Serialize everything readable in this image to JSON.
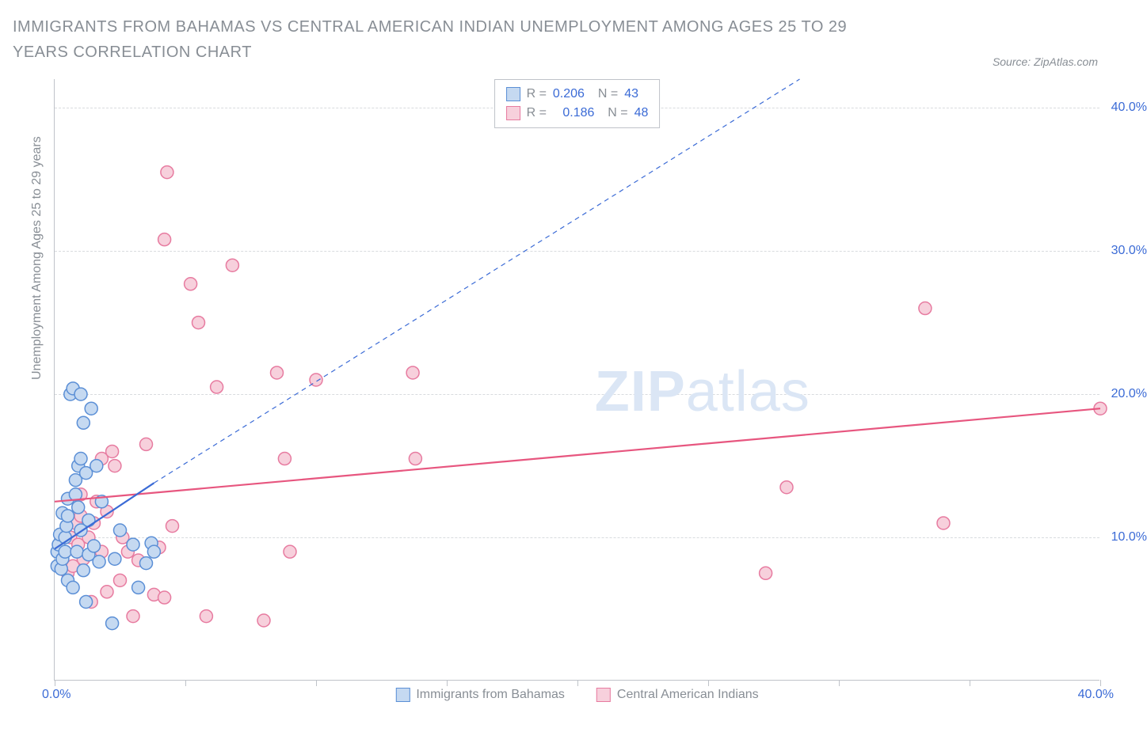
{
  "title": "IMMIGRANTS FROM BAHAMAS VS CENTRAL AMERICAN INDIAN UNEMPLOYMENT AMONG AGES 25 TO 29 YEARS CORRELATION CHART",
  "source": "Source: ZipAtlas.com",
  "y_axis_title": "Unemployment Among Ages 25 to 29 years",
  "watermark_bold": "ZIP",
  "watermark_rest": "atlas",
  "chart": {
    "type": "scatter",
    "xlim": [
      0.0,
      40.0
    ],
    "ylim": [
      0.0,
      42.0
    ],
    "x_ticks": [
      0.0,
      5.0,
      10.0,
      15.0,
      20.0,
      25.0,
      30.0,
      35.0,
      40.0
    ],
    "x_tick_labels_visible": {
      "first": "0.0%",
      "last": "40.0%"
    },
    "y_grid": [
      10.0,
      20.0,
      30.0,
      40.0
    ],
    "y_tick_labels": [
      "10.0%",
      "20.0%",
      "30.0%",
      "40.0%"
    ],
    "grid_color": "#d8dbde",
    "axis_color": "#bfc3c9",
    "background_color": "#ffffff",
    "tick_label_color": "#3b6bd6",
    "axis_title_color": "#888e95",
    "marker_radius": 8,
    "series": [
      {
        "name": "Immigrants from Bahamas",
        "color_fill": "#c5d9f1",
        "color_stroke": "#5b8fd6",
        "trend": {
          "x1": 0.0,
          "y1": 9.2,
          "x2": 3.8,
          "y2": 13.8,
          "dash_x2": 28.5,
          "dash_y2": 42.0,
          "color": "#3b6bd6",
          "width": 2.2
        },
        "legend_stats": {
          "R": "0.206",
          "N": "43"
        },
        "points": [
          [
            0.1,
            8.0
          ],
          [
            0.1,
            9.0
          ],
          [
            0.15,
            9.5
          ],
          [
            0.2,
            10.2
          ],
          [
            0.25,
            7.8
          ],
          [
            0.3,
            8.5
          ],
          [
            0.3,
            11.7
          ],
          [
            0.4,
            9.0
          ],
          [
            0.4,
            10.0
          ],
          [
            0.45,
            10.8
          ],
          [
            0.5,
            7.0
          ],
          [
            0.5,
            11.5
          ],
          [
            0.5,
            12.7
          ],
          [
            0.6,
            20.0
          ],
          [
            0.7,
            6.5
          ],
          [
            0.7,
            20.4
          ],
          [
            0.8,
            13.0
          ],
          [
            0.8,
            14.0
          ],
          [
            0.85,
            9.0
          ],
          [
            0.9,
            12.1
          ],
          [
            0.9,
            15.0
          ],
          [
            1.0,
            10.5
          ],
          [
            1.0,
            15.5
          ],
          [
            1.0,
            20.0
          ],
          [
            1.1,
            7.7
          ],
          [
            1.1,
            18.0
          ],
          [
            1.2,
            5.5
          ],
          [
            1.2,
            14.5
          ],
          [
            1.3,
            8.8
          ],
          [
            1.3,
            11.2
          ],
          [
            1.4,
            19.0
          ],
          [
            1.5,
            9.4
          ],
          [
            1.6,
            15.0
          ],
          [
            1.7,
            8.3
          ],
          [
            1.8,
            12.5
          ],
          [
            2.2,
            4.0
          ],
          [
            2.3,
            8.5
          ],
          [
            2.5,
            10.5
          ],
          [
            3.0,
            9.5
          ],
          [
            3.2,
            6.5
          ],
          [
            3.5,
            8.2
          ],
          [
            3.7,
            9.6
          ],
          [
            3.8,
            9.0
          ]
        ]
      },
      {
        "name": "Central American Indians",
        "color_fill": "#f7d0dc",
        "color_stroke": "#e77ba0",
        "trend": {
          "x1": 0.0,
          "y1": 12.5,
          "x2": 40.0,
          "y2": 19.0,
          "color": "#e7567f",
          "width": 2.2
        },
        "legend_stats": {
          "R": "0.186",
          "N": "48"
        },
        "points": [
          [
            0.4,
            9.0
          ],
          [
            0.5,
            7.5
          ],
          [
            0.6,
            10.0
          ],
          [
            0.7,
            8.0
          ],
          [
            0.8,
            11.0
          ],
          [
            0.9,
            9.5
          ],
          [
            1.0,
            11.5
          ],
          [
            1.0,
            13.0
          ],
          [
            1.1,
            8.5
          ],
          [
            1.3,
            10.0
          ],
          [
            1.4,
            5.5
          ],
          [
            1.5,
            11.0
          ],
          [
            1.6,
            12.5
          ],
          [
            1.8,
            9.0
          ],
          [
            1.8,
            15.5
          ],
          [
            2.0,
            6.2
          ],
          [
            2.0,
            11.8
          ],
          [
            2.2,
            16.0
          ],
          [
            2.3,
            15.0
          ],
          [
            2.5,
            7.0
          ],
          [
            2.6,
            10.0
          ],
          [
            2.8,
            9.0
          ],
          [
            3.0,
            4.5
          ],
          [
            3.2,
            8.4
          ],
          [
            3.5,
            16.5
          ],
          [
            3.8,
            6.0
          ],
          [
            4.0,
            9.3
          ],
          [
            4.2,
            5.8
          ],
          [
            4.2,
            30.8
          ],
          [
            4.3,
            35.5
          ],
          [
            4.5,
            10.8
          ],
          [
            5.2,
            27.7
          ],
          [
            5.5,
            25.0
          ],
          [
            5.8,
            4.5
          ],
          [
            6.2,
            20.5
          ],
          [
            6.8,
            29.0
          ],
          [
            8.0,
            4.2
          ],
          [
            8.5,
            21.5
          ],
          [
            8.8,
            15.5
          ],
          [
            9.0,
            9.0
          ],
          [
            10.0,
            21.0
          ],
          [
            13.7,
            21.5
          ],
          [
            13.8,
            15.5
          ],
          [
            27.2,
            7.5
          ],
          [
            28.0,
            13.5
          ],
          [
            33.3,
            26.0
          ],
          [
            34.0,
            11.0
          ],
          [
            40.0,
            19.0
          ]
        ]
      }
    ]
  },
  "legend_bottom": [
    {
      "label": "Immigrants from Bahamas",
      "fill": "#c5d9f1",
      "stroke": "#5b8fd6"
    },
    {
      "label": "Central American Indians",
      "fill": "#f7d0dc",
      "stroke": "#e77ba0"
    }
  ]
}
